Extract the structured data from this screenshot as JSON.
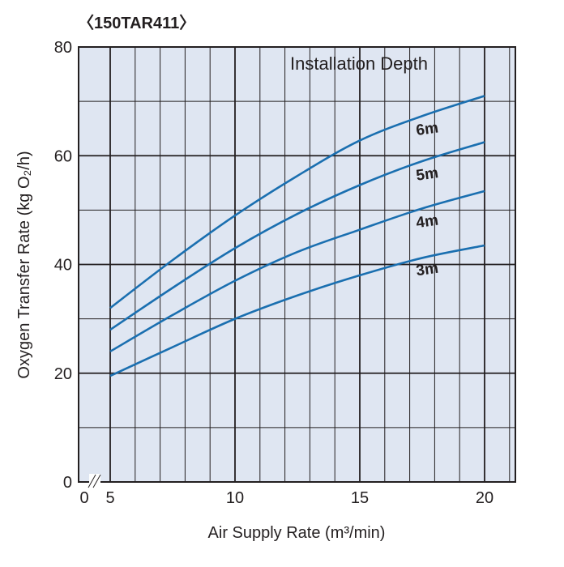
{
  "chart_data": {
    "type": "line",
    "title": "〈150TAR411〉",
    "xlabel": "Air Supply Rate  (m³/min)",
    "ylabel": "Oxygen Transfer Rate (kg O₂/h)",
    "legend_title": "Installation Depth",
    "xlim": [
      0,
      21.2
    ],
    "x_axis_break": [
      0,
      5
    ],
    "ylim": [
      0,
      80
    ],
    "xticks": [
      "0",
      "5",
      "10",
      "15",
      "20"
    ],
    "yticks": [
      "0",
      "20",
      "40",
      "60",
      "80"
    ],
    "grid": true,
    "colors": {
      "line": "#1a6fb0",
      "background": "#dfe6f2",
      "grid": "#231f20"
    },
    "series": [
      {
        "name": "6m",
        "x": [
          5,
          7.5,
          10,
          12.5,
          15,
          17.5,
          20
        ],
        "y": [
          32,
          40.8,
          49,
          56.3,
          62.8,
          67.3,
          71
        ]
      },
      {
        "name": "5m",
        "x": [
          5,
          7.5,
          10,
          12.5,
          15,
          17.5,
          20
        ],
        "y": [
          28,
          35.7,
          43,
          49.3,
          54.6,
          59,
          62.5
        ]
      },
      {
        "name": "4m",
        "x": [
          5,
          7.5,
          10,
          12.5,
          15,
          17.5,
          20
        ],
        "y": [
          24,
          30.7,
          37,
          42.3,
          46.4,
          50.3,
          53.5
        ]
      },
      {
        "name": "3m",
        "x": [
          5,
          7.5,
          10,
          12.5,
          15,
          17.5,
          20
        ],
        "y": [
          19.5,
          24.8,
          30,
          34.3,
          38,
          41.2,
          43.5
        ]
      }
    ]
  }
}
